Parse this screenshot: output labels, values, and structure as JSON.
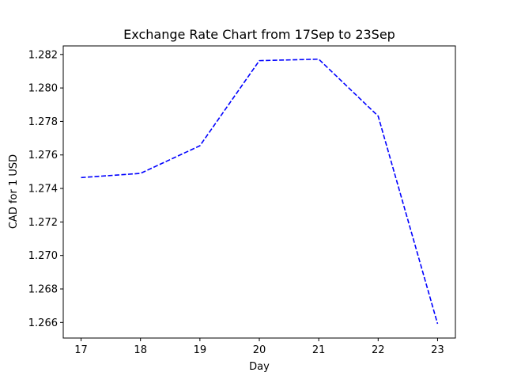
{
  "chart_data": {
    "type": "line",
    "title": "Exchange Rate Chart from 17Sep to 23Sep",
    "xlabel": "Day",
    "ylabel": "CAD for 1 USD",
    "x": [
      17,
      18,
      19,
      20,
      21,
      22,
      23
    ],
    "x_tick_labels": [
      "17",
      "18",
      "19",
      "20",
      "21",
      "22",
      "23"
    ],
    "series": [
      {
        "values": [
          1.27465,
          1.2749,
          1.27655,
          1.28163,
          1.28172,
          1.27832,
          1.26592
        ],
        "color": "#0000ff",
        "line_style": "dashed"
      }
    ],
    "y_ticks": [
      1.266,
      1.268,
      1.27,
      1.272,
      1.274,
      1.276,
      1.278,
      1.28,
      1.282
    ],
    "y_tick_labels": [
      "1.266",
      "1.268",
      "1.270",
      "1.272",
      "1.274",
      "1.276",
      "1.278",
      "1.280",
      "1.282"
    ],
    "xlim": [
      16.7,
      23.3
    ],
    "ylim": [
      1.26507,
      1.28251
    ],
    "grid": false,
    "legend": "none"
  }
}
